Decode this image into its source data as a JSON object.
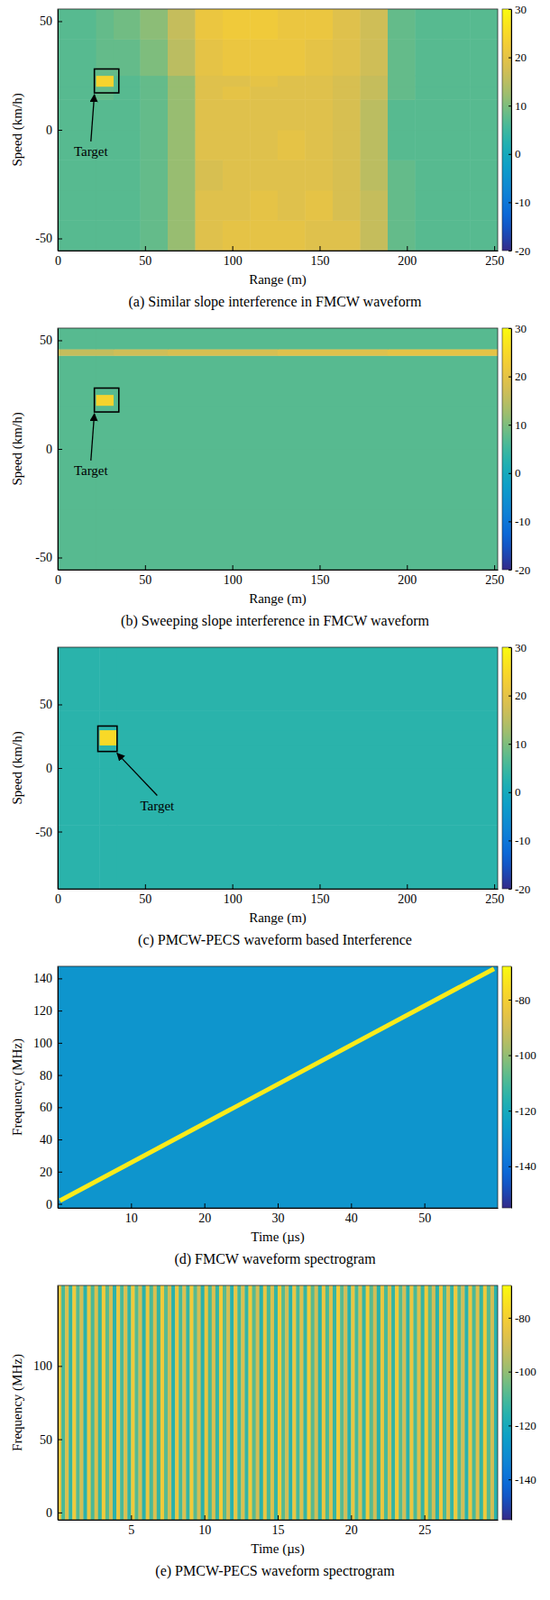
{
  "chart_data": [
    {
      "type": "heatmap",
      "title": "(a) Similar slope interference in FMCW waveform",
      "x_label": "Range (m)",
      "y_label": "Speed (km/h)",
      "xlim": [
        0,
        252
      ],
      "ylim": [
        -55.6,
        55.6
      ],
      "xticks": [
        0,
        50,
        100,
        150,
        200,
        250
      ],
      "yticks": [
        -50,
        0,
        50
      ],
      "x_edges": [
        0,
        22,
        32,
        47.25,
        63,
        78.75,
        94.5,
        110.25,
        126,
        141.75,
        157.5,
        173.25,
        189,
        204.75,
        220.5,
        236.25,
        252
      ],
      "y_edges": [
        -55.6,
        -41.7,
        -27.8,
        -13.9,
        0,
        13.9,
        20,
        25,
        41.7,
        55.6
      ],
      "z": [
        [
          7,
          7,
          7,
          8,
          12,
          19,
          20,
          20,
          20,
          19,
          19,
          16,
          8,
          7,
          7,
          7
        ],
        [
          7,
          7,
          7,
          8,
          12,
          19,
          19,
          20,
          19,
          20,
          18,
          16,
          8,
          7,
          7,
          7
        ],
        [
          7,
          7,
          7,
          8,
          12,
          18,
          19,
          19,
          19,
          19,
          18,
          15,
          8,
          7,
          7,
          7
        ],
        [
          7,
          7,
          7,
          8,
          12,
          19,
          19,
          19,
          20,
          19,
          18,
          15,
          7,
          7,
          7,
          7
        ],
        [
          7,
          7,
          7,
          8,
          12,
          19,
          19,
          19,
          19,
          19,
          18,
          15,
          7,
          7,
          7,
          7
        ],
        [
          7,
          8,
          7,
          8,
          12,
          19,
          20,
          19,
          19,
          19,
          18,
          16,
          8,
          7,
          7,
          7
        ],
        [
          7,
          24,
          7,
          8,
          12,
          19,
          19,
          20,
          19,
          19,
          18,
          16,
          8,
          7,
          7,
          7
        ],
        [
          7,
          8,
          8,
          10,
          15,
          20,
          21,
          21,
          21,
          20,
          19,
          17,
          8,
          7,
          7,
          7
        ],
        [
          7,
          8,
          9,
          11,
          16,
          21,
          22,
          22,
          21,
          21,
          19,
          17,
          8,
          7,
          7,
          7
        ]
      ],
      "colorbar": {
        "range": [
          -20,
          30
        ],
        "ticks": [
          -20,
          -10,
          0,
          10,
          20,
          30
        ]
      },
      "annotations": [
        {
          "text": "Target",
          "box_x": [
            21,
            35
          ],
          "box_y": [
            17,
            28
          ],
          "text_x": 19,
          "text_y": -12
        }
      ]
    },
    {
      "type": "heatmap",
      "title": "(b) Sweeping slope interference in FMCW waveform",
      "x_label": "Range (m)",
      "y_label": "Speed (km/h)",
      "xlim": [
        0,
        252
      ],
      "ylim": [
        -55.6,
        55.6
      ],
      "xticks": [
        0,
        50,
        100,
        150,
        200,
        250
      ],
      "yticks": [
        -50,
        0,
        50
      ],
      "x_edges": [
        0,
        22,
        32,
        63,
        126,
        189,
        252
      ],
      "y_edges": [
        -55.6,
        -27.8,
        0,
        20,
        25,
        43,
        46,
        55.6
      ],
      "z": [
        [
          7,
          7,
          7,
          7,
          7,
          7
        ],
        [
          7,
          7,
          7,
          7,
          7,
          7
        ],
        [
          7,
          7,
          7,
          7,
          7,
          7
        ],
        [
          7,
          24,
          7,
          7,
          7,
          7
        ],
        [
          7,
          7,
          7,
          7,
          7,
          7
        ],
        [
          16,
          16,
          17,
          18,
          19,
          20
        ],
        [
          7,
          7,
          7,
          7,
          7,
          7
        ]
      ],
      "colorbar": {
        "range": [
          -20,
          30
        ],
        "ticks": [
          -20,
          -10,
          0,
          10,
          20,
          30
        ]
      },
      "annotations": [
        {
          "text": "Target",
          "box_x": [
            21,
            35
          ],
          "box_y": [
            17,
            28
          ],
          "text_x": 19,
          "text_y": -12
        }
      ]
    },
    {
      "type": "heatmap",
      "title": "(c) PMCW-PECS waveform based Interference",
      "x_label": "Range (m)",
      "y_label": "Speed (km/h)",
      "xlim": [
        0,
        252
      ],
      "ylim": [
        -95,
        95
      ],
      "xticks": [
        0,
        50,
        100,
        150,
        200,
        250
      ],
      "yticks": [
        -50,
        0,
        50
      ],
      "x_edges": [
        0,
        24,
        34,
        63,
        126,
        189,
        252
      ],
      "y_edges": [
        -95,
        -45,
        0,
        18,
        30,
        45,
        95
      ],
      "z": [
        [
          3,
          3,
          3,
          3,
          3,
          3
        ],
        [
          3,
          3,
          3,
          3,
          3,
          3
        ],
        [
          3,
          3,
          3,
          3,
          3,
          3
        ],
        [
          3,
          25,
          3,
          3,
          3,
          3
        ],
        [
          3,
          3,
          3,
          3,
          3,
          3
        ],
        [
          3,
          3,
          3,
          3,
          3,
          3
        ]
      ],
      "colorbar": {
        "range": [
          -20,
          30
        ],
        "ticks": [
          -20,
          -10,
          0,
          10,
          20,
          30
        ]
      },
      "annotations": [
        {
          "text": "Target",
          "box_x": [
            23,
            34
          ],
          "box_y": [
            13,
            33
          ],
          "text_x": 57,
          "text_y": -33
        }
      ]
    },
    {
      "type": "heatmap",
      "title": "(d) FMCW waveform spectrogram",
      "x_label": "Time (µs)",
      "y_label": "Frequency (MHz)",
      "xlim": [
        0,
        60
      ],
      "ylim": [
        -2.5,
        147.5
      ],
      "xticks": [
        10,
        20,
        30,
        40,
        50
      ],
      "yticks": [
        0,
        20,
        40,
        60,
        80,
        100,
        120,
        140
      ],
      "x_edges": [
        0,
        60
      ],
      "y_edges": [
        -2.5,
        147.5
      ],
      "z": [
        [
          -128
        ]
      ],
      "ridge": {
        "x": [
          0.3,
          59.5
        ],
        "y": [
          2,
          146
        ],
        "value": -72
      },
      "colorbar": {
        "range": [
          -155,
          -68
        ],
        "ticks": [
          -140,
          -120,
          -100,
          -80
        ]
      }
    },
    {
      "type": "heatmap",
      "title": "(e) PMCW-PECS waveform spectrogram",
      "x_label": "Time (µs)",
      "y_label": "Frequency (MHz)",
      "xlim": [
        0,
        30
      ],
      "ylim": [
        -5,
        155
      ],
      "xticks": [
        5,
        10,
        15,
        20,
        25
      ],
      "yticks": [
        0,
        50,
        100
      ],
      "x_edges": [
        0,
        0.25,
        0.5,
        0.75,
        1,
        1.25,
        1.5,
        1.75,
        2,
        2.25,
        2.5,
        2.75,
        3,
        3.25,
        3.5,
        3.75,
        4,
        4.25,
        4.5,
        4.75,
        5,
        5.25,
        5.5,
        5.75,
        6,
        6.25,
        6.5,
        6.75,
        7,
        7.25,
        7.5,
        7.75,
        8,
        8.25,
        8.5,
        8.75,
        9,
        9.25,
        9.5,
        9.75,
        10,
        10.25,
        10.5,
        10.75,
        11,
        11.25,
        11.5,
        11.75,
        12,
        12.25,
        12.5,
        12.75,
        13,
        13.25,
        13.5,
        13.75,
        14,
        14.25,
        14.5,
        14.75,
        15,
        15.25,
        15.5,
        15.75,
        16,
        16.25,
        16.5,
        16.75,
        17,
        17.25,
        17.5,
        17.75,
        18,
        18.25,
        18.5,
        18.75,
        19,
        19.25,
        19.5,
        19.75,
        20,
        20.25,
        20.5,
        20.75,
        21,
        21.25,
        21.5,
        21.75,
        22,
        22.25,
        22.5,
        22.75,
        23,
        23.25,
        23.5,
        23.75,
        24,
        24.25,
        24.5,
        24.75,
        25,
        25.25,
        25.5,
        25.75,
        26,
        26.25,
        26.5,
        26.75,
        27,
        27.25,
        27.5,
        27.75,
        28,
        28.25,
        28.5,
        28.75,
        29,
        29.25,
        29.5,
        29.75,
        30
      ],
      "y_edges": [
        -5,
        155
      ],
      "z": [
        [
          -84,
          -110,
          -88,
          -113,
          -82,
          -108,
          -90,
          -115,
          -84,
          -110,
          -88,
          -113,
          -82,
          -108,
          -90,
          -115,
          -84,
          -110,
          -88,
          -113,
          -82,
          -108,
          -90,
          -115,
          -84,
          -110,
          -88,
          -113,
          -82,
          -108,
          -90,
          -115,
          -84,
          -110,
          -88,
          -113,
          -82,
          -108,
          -90,
          -115,
          -84,
          -110,
          -88,
          -113,
          -82,
          -108,
          -90,
          -115,
          -84,
          -110,
          -88,
          -113,
          -82,
          -108,
          -90,
          -115,
          -84,
          -110,
          -88,
          -113,
          -82,
          -108,
          -90,
          -115,
          -84,
          -110,
          -88,
          -113,
          -82,
          -108,
          -90,
          -115,
          -84,
          -110,
          -88,
          -113,
          -82,
          -108,
          -90,
          -115,
          -84,
          -110,
          -88,
          -113,
          -82,
          -108,
          -90,
          -115,
          -84,
          -110,
          -88,
          -113,
          -82,
          -108,
          -90,
          -115,
          -84,
          -110,
          -88,
          -113,
          -82,
          -108,
          -90,
          -115,
          -84,
          -110,
          -88,
          -113,
          -82,
          -108,
          -90,
          -115,
          -84,
          -110,
          -88,
          -113,
          -82,
          -108,
          -90,
          -115
        ]
      ],
      "colorbar": {
        "range": [
          -155,
          -68
        ],
        "ticks": [
          -140,
          -120,
          -100,
          -80
        ]
      }
    }
  ]
}
